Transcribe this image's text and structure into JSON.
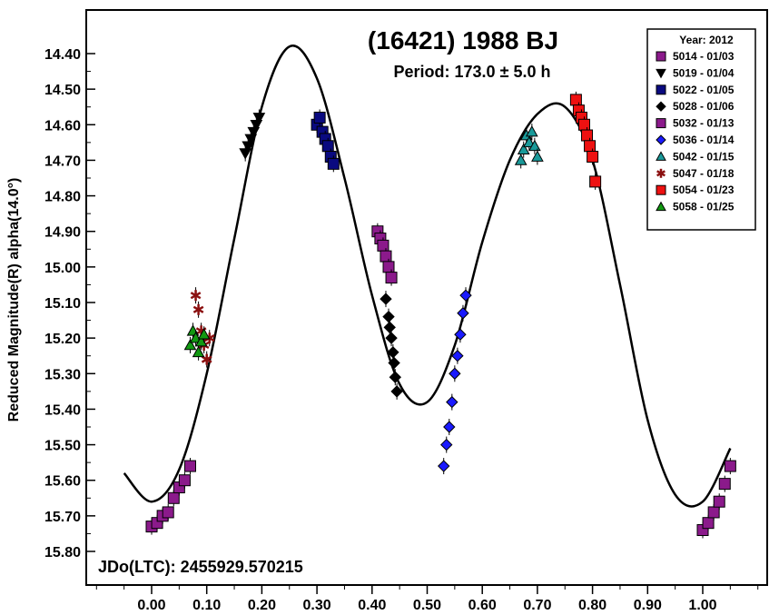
{
  "chart_data": {
    "type": "scatter",
    "title": "(16421) 1988 BJ",
    "subtitle": "Period: 173.0 ± 5.0 h",
    "ylabel": "Reduced Magnitude(R) alpha(14.0°)",
    "xlabel": "",
    "epoch_label": "JDo(LTC): 2455929.570215",
    "xlim": [
      -0.12,
      1.12
    ],
    "ylim": [
      15.88,
      14.3
    ],
    "y_inverted": true,
    "x_ticks": [
      0.0,
      0.1,
      0.2,
      0.3,
      0.4,
      0.5,
      0.6,
      0.7,
      0.8,
      0.9,
      1.0
    ],
    "x_tick_labels": [
      "0.00",
      "0.10",
      "0.20",
      "0.30",
      "0.40",
      "0.50",
      "0.60",
      "0.70",
      "0.80",
      "0.90",
      "1.00"
    ],
    "y_ticks": [
      14.4,
      14.5,
      14.6,
      14.7,
      14.8,
      14.9,
      15.0,
      15.1,
      15.2,
      15.3,
      15.4,
      15.5,
      15.6,
      15.7,
      15.8
    ],
    "y_tick_labels": [
      "14.40",
      "14.50",
      "14.60",
      "14.70",
      "14.80",
      "14.90",
      "15.00",
      "15.10",
      "15.20",
      "15.30",
      "15.40",
      "15.50",
      "15.60",
      "15.70",
      "15.80"
    ],
    "grid": false,
    "legend": {
      "title": "Year: 2012",
      "position": "top-right"
    },
    "fit_curve": {
      "x": [
        -0.05,
        0.0,
        0.05,
        0.1,
        0.15,
        0.2,
        0.25,
        0.3,
        0.35,
        0.4,
        0.45,
        0.5,
        0.55,
        0.6,
        0.65,
        0.7,
        0.75,
        0.8,
        0.85,
        0.9,
        0.95,
        1.0,
        1.05
      ],
      "y": [
        15.58,
        15.66,
        15.57,
        15.3,
        14.92,
        14.55,
        14.38,
        14.47,
        14.75,
        15.08,
        15.33,
        15.38,
        15.22,
        14.93,
        14.7,
        14.57,
        14.55,
        14.7,
        15.05,
        15.43,
        15.64,
        15.66,
        15.51
      ]
    },
    "series": [
      {
        "name": "5014 - 01/03",
        "marker": "square",
        "color": "#8B1A8B",
        "x": [
          0.0,
          0.01,
          0.02,
          0.03,
          0.04,
          0.05,
          0.06,
          0.07,
          1.0,
          1.01,
          1.02,
          1.03,
          1.04,
          1.05
        ],
        "y": [
          15.73,
          15.72,
          15.7,
          15.69,
          15.65,
          15.62,
          15.6,
          15.56,
          15.74,
          15.72,
          15.69,
          15.66,
          15.61,
          15.56
        ]
      },
      {
        "name": "5019 - 01/04",
        "marker": "triangle-down",
        "color": "#000000",
        "x": [
          0.17,
          0.175,
          0.18,
          0.185,
          0.19,
          0.195
        ],
        "y": [
          14.68,
          14.66,
          14.64,
          14.62,
          14.6,
          14.58
        ]
      },
      {
        "name": "5022 - 01/05",
        "marker": "square",
        "color": "#0a0a80",
        "x": [
          0.3,
          0.305,
          0.31,
          0.315,
          0.32,
          0.325,
          0.33
        ],
        "y": [
          14.6,
          14.58,
          14.62,
          14.64,
          14.66,
          14.69,
          14.71
        ]
      },
      {
        "name": "5028 - 01/06",
        "marker": "diamond",
        "color": "#000000",
        "x": [
          0.425,
          0.43,
          0.432,
          0.435,
          0.438,
          0.44,
          0.442,
          0.445
        ],
        "y": [
          15.09,
          15.14,
          15.17,
          15.2,
          15.24,
          15.27,
          15.31,
          15.35
        ]
      },
      {
        "name": "5032 - 01/13",
        "marker": "square",
        "color": "#8B1A8B",
        "x": [
          0.41,
          0.415,
          0.42,
          0.425,
          0.43,
          0.435
        ],
        "y": [
          14.9,
          14.92,
          14.94,
          14.97,
          15.0,
          15.03
        ]
      },
      {
        "name": "5036 - 01/14",
        "marker": "diamond",
        "color": "#1a1aff",
        "x": [
          0.53,
          0.535,
          0.54,
          0.545,
          0.55,
          0.555,
          0.56,
          0.565,
          0.57
        ],
        "y": [
          15.56,
          15.5,
          15.45,
          15.38,
          15.3,
          15.25,
          15.19,
          15.13,
          15.08
        ]
      },
      {
        "name": "5042 - 01/15",
        "marker": "triangle-up",
        "color": "#1a9a9a",
        "x": [
          0.67,
          0.675,
          0.68,
          0.685,
          0.69,
          0.695,
          0.7
        ],
        "y": [
          14.7,
          14.67,
          14.63,
          14.65,
          14.62,
          14.66,
          14.69
        ]
      },
      {
        "name": "5047 - 01/18",
        "marker": "asterisk",
        "color": "#8B1010",
        "x": [
          0.08,
          0.085,
          0.09,
          0.095,
          0.1,
          0.105
        ],
        "y": [
          15.08,
          15.12,
          15.18,
          15.22,
          15.26,
          15.2
        ]
      },
      {
        "name": "5054 - 01/23",
        "marker": "square",
        "color": "#ee1111",
        "x": [
          0.77,
          0.775,
          0.78,
          0.785,
          0.79,
          0.795,
          0.8,
          0.805
        ],
        "y": [
          14.53,
          14.56,
          14.58,
          14.6,
          14.63,
          14.66,
          14.69,
          14.76
        ]
      },
      {
        "name": "5058 - 01/25",
        "marker": "triangle-up",
        "color": "#119911",
        "x": [
          0.07,
          0.075,
          0.08,
          0.085,
          0.09,
          0.095
        ],
        "y": [
          15.22,
          15.18,
          15.2,
          15.24,
          15.21,
          15.19
        ]
      }
    ]
  }
}
